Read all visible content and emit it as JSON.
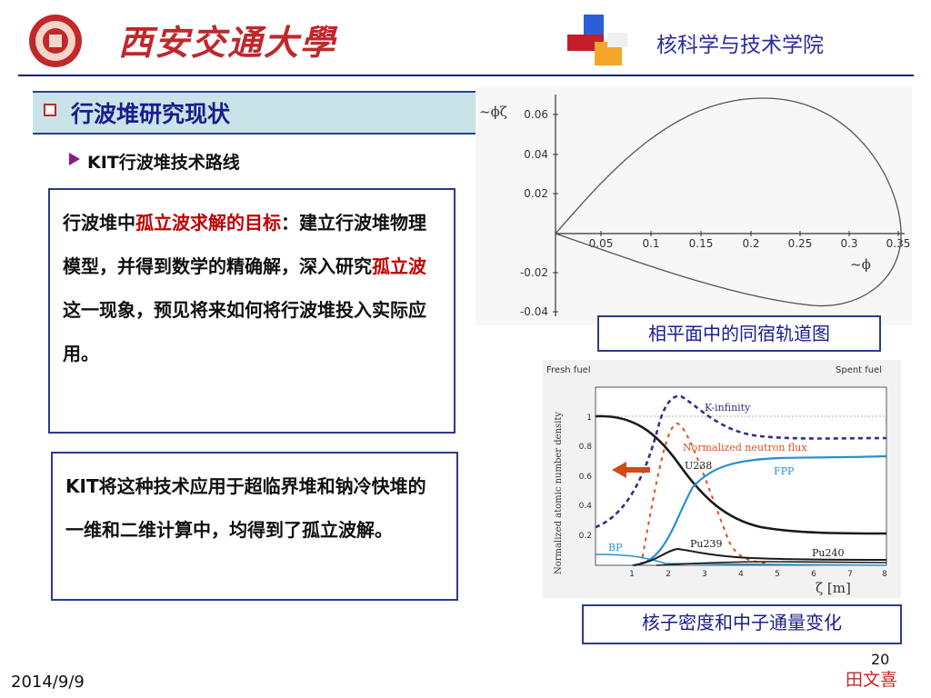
{
  "header": {
    "logo_text": "西安交通大學",
    "college": "核科学与技术学院",
    "colors": {
      "accent": "#c0282b",
      "navy": "#1c1c8a"
    }
  },
  "section": {
    "title": "行波堆研究现状",
    "subtitle": "KIT行波堆技术路线"
  },
  "box1": {
    "p1": "行波堆中",
    "p2": "孤立波求解的目标",
    "p3": "：建立行波堆物理模型，并得到数学的精确解，深入研究",
    "p4": "孤立波",
    "p5": "这一现象，预见将来如何将行波堆投入实际应用。"
  },
  "box2": {
    "text": "KIT将这种技术应用于超临界堆和钠冷快堆的一维和二维计算中，均得到了孤立波解。"
  },
  "captions": {
    "phase": "相平面中的同宿轨道图",
    "density": "核子密度和中子通量变化"
  },
  "phase_plot": {
    "ylabel": "~ϕζ",
    "xlabel": "~ϕ",
    "x_ticks": [
      "0.05",
      "0.1",
      "0.15",
      "0.2",
      "0.25",
      "0.3",
      "0.35"
    ],
    "y_ticks": [
      "0.06",
      "0.04",
      "0.02",
      "-0.02",
      "-0.04"
    ]
  },
  "density_plot": {
    "top_left": "Fresh fuel",
    "top_right": "Spent fuel",
    "ylabel": "Normalized atomic number density",
    "xlabel": "ζ [m]",
    "x_ticks": [
      "1",
      "2",
      "3",
      "4",
      "5",
      "6",
      "7",
      "8"
    ],
    "y_ticks": [
      "1",
      "0.8",
      "0.6",
      "0.4",
      "0.2"
    ],
    "labels": {
      "kinf": "K-infinity",
      "flux": "Normalized neutron flux",
      "u238": "U238",
      "fpp": "FPP",
      "bp": "BP",
      "pu239": "Pu239",
      "pu240": "Pu240"
    }
  },
  "footer": {
    "page": "20",
    "date": "2014/9/9",
    "author": "田文喜"
  }
}
